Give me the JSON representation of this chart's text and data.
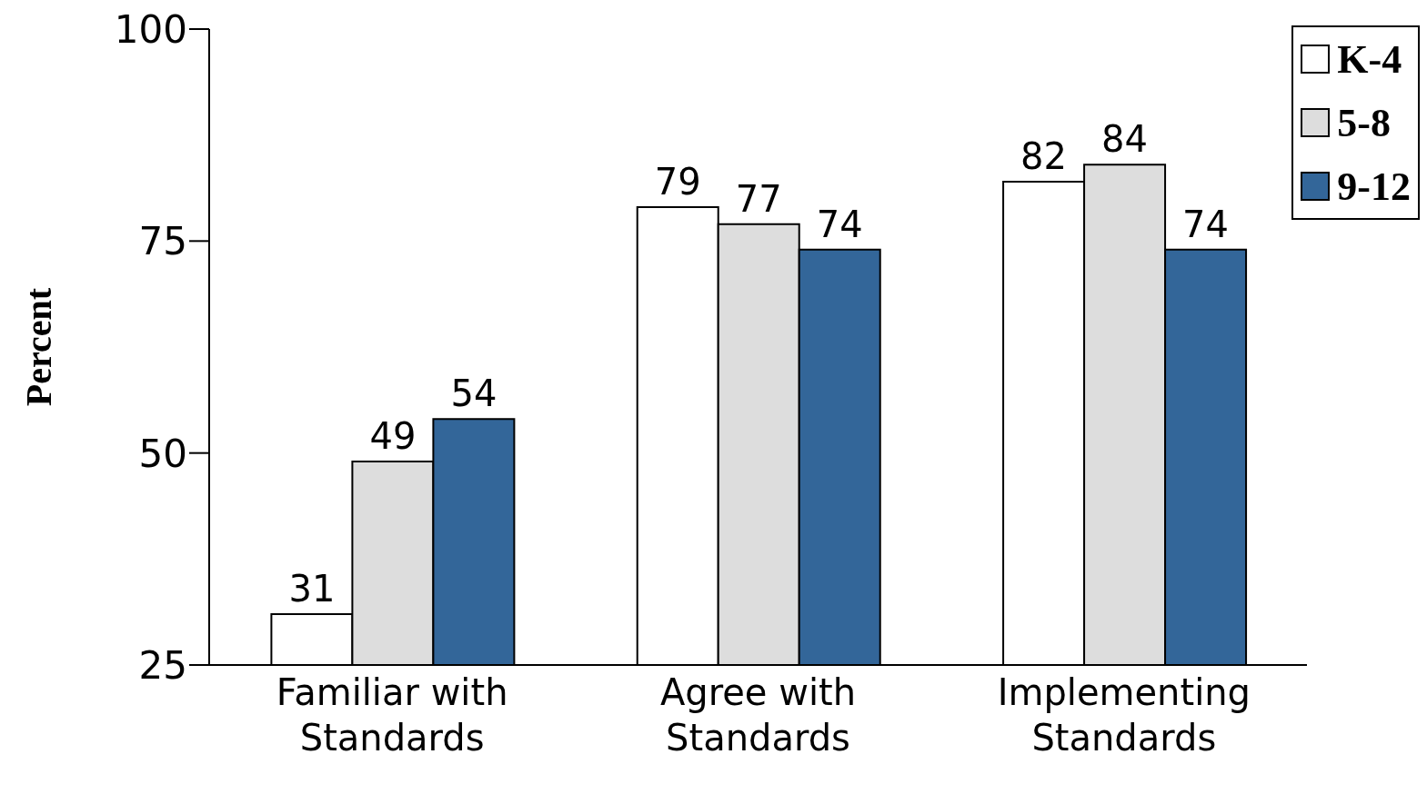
{
  "chart_data": {
    "type": "bar",
    "categories": [
      "Familiar with Standards",
      "Agree with Standards",
      "Implementing Standards"
    ],
    "series": [
      {
        "name": "K-4",
        "color": "#ffffff",
        "values": [
          31,
          79,
          82
        ]
      },
      {
        "name": "5-8",
        "color": "#dddddd",
        "values": [
          49,
          77,
          84
        ]
      },
      {
        "name": "9-12",
        "color": "#336699",
        "values": [
          54,
          74,
          74
        ]
      }
    ],
    "ylabel": "Percent",
    "ylim": [
      25,
      100
    ],
    "yticks": [
      25,
      50,
      75,
      100
    ],
    "grid": false,
    "legend": "top right",
    "data_labels": true
  }
}
